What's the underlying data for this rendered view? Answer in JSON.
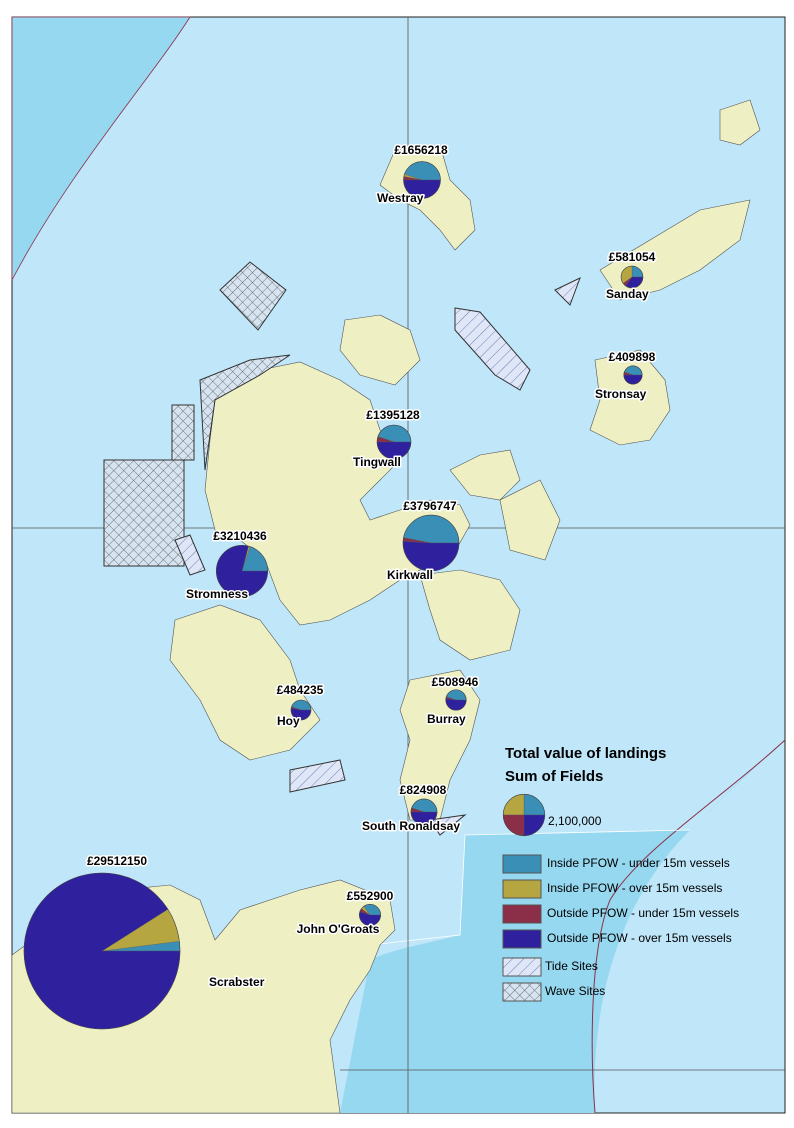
{
  "legend": {
    "title": "Total value of landings",
    "subtitle": "Sum of Fields",
    "size_reference": {
      "value": 2100000,
      "label": "2,100,000"
    },
    "categories": [
      {
        "name": "Inside PFOW - under 15m vessels",
        "color": "#3a8fb7"
      },
      {
        "name": "Inside PFOW - over 15m vessels",
        "color": "#b5a642"
      },
      {
        "name": "Outside PFOW - under 15m vessels",
        "color": "#8b2e48"
      },
      {
        "name": "Outside PFOW - over 15m vessels",
        "color": "#2f219e"
      }
    ],
    "tide_sites": "Tide Sites",
    "wave_sites": "Wave Sites"
  },
  "ports": [
    {
      "name": "Westray",
      "value": 1656218,
      "value_label": "£1656218",
      "segments": [
        745298,
        33124,
        49687,
        828109
      ]
    },
    {
      "name": "Sanday",
      "value": 581054,
      "value_label": "£581054",
      "segments": [
        145264,
        203369,
        29053,
        203368
      ]
    },
    {
      "name": "Stronsay",
      "value": 409898,
      "value_label": "£409898",
      "segments": [
        184454,
        0,
        20495,
        204949
      ]
    },
    {
      "name": "Tingwall",
      "value": 1395128,
      "value_label": "£1395128",
      "segments": [
        627808,
        0,
        69756,
        697564
      ]
    },
    {
      "name": "Kirkwall",
      "value": 3796747,
      "value_label": "£3796747",
      "segments": [
        1784471,
        0,
        75935,
        1936341
      ]
    },
    {
      "name": "Stromness",
      "value": 3210436,
      "value_label": "£3210436",
      "segments": [
        642087,
        32104,
        0,
        2536245
      ]
    },
    {
      "name": "Hoy",
      "value": 484235,
      "value_label": "£484235",
      "segments": [
        217906,
        0,
        9685,
        256644
      ]
    },
    {
      "name": "Burray",
      "value": 508946,
      "value_label": "£508946",
      "segments": [
        229026,
        0,
        15268,
        264652
      ]
    },
    {
      "name": "South Ronaldsay",
      "value": 824908,
      "value_label": "£824908",
      "segments": [
        371209,
        0,
        41245,
        412454
      ]
    },
    {
      "name": "John O'Groats",
      "value": 552900,
      "value_label": "£552900",
      "segments": [
        193515,
        27645,
        27645,
        304095
      ]
    },
    {
      "name": "Scrabster",
      "value": 29512150,
      "value_label": "£29512150",
      "segments": [
        590243,
        2065851,
        0,
        26856056
      ]
    }
  ]
}
